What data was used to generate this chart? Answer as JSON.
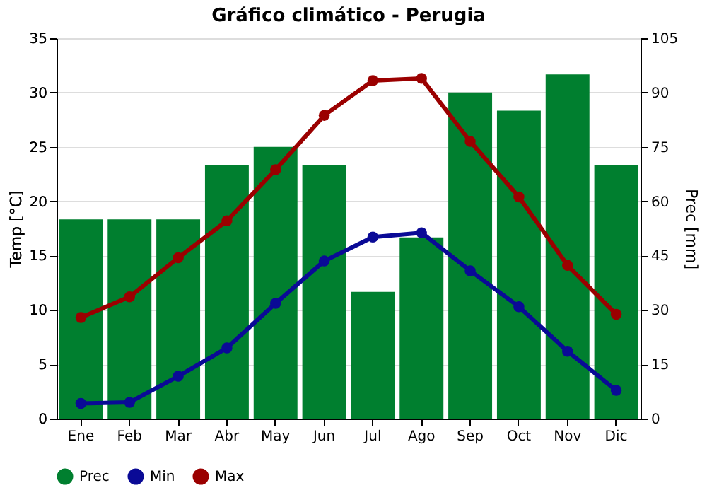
{
  "chart_data": {
    "type": "bar",
    "title": "Gráfico climático - Perugia",
    "categories": [
      "Ene",
      "Feb",
      "Mar",
      "Abr",
      "May",
      "Jun",
      "Jul",
      "Ago",
      "Sep",
      "Oct",
      "Nov",
      "Dic"
    ],
    "series": [
      {
        "name": "Prec",
        "axis": "y2",
        "color": "#007f2f",
        "values": [
          55,
          55,
          55,
          70,
          75,
          70,
          35,
          50,
          90,
          85,
          95,
          70
        ]
      },
      {
        "name": "Min",
        "type": "line",
        "color": "#0a0a96",
        "values": [
          1.4,
          1.5,
          3.9,
          6.5,
          10.6,
          14.5,
          16.7,
          17.1,
          13.6,
          10.3,
          6.2,
          2.6
        ]
      },
      {
        "name": "Max",
        "type": "line",
        "color": "#9b0000",
        "values": [
          9.3,
          11.2,
          14.8,
          18.2,
          22.9,
          27.9,
          31.1,
          31.3,
          25.5,
          20.4,
          14.1,
          9.6
        ]
      }
    ],
    "ylabel": "Temp [°C]",
    "y2label": "Prec [mm]",
    "ylim": [
      0,
      35
    ],
    "yticks": [
      0,
      5,
      10,
      15,
      20,
      25,
      30,
      35
    ],
    "y2lim": [
      0,
      105
    ],
    "y2ticks": [
      0,
      15,
      30,
      45,
      60,
      75,
      90,
      105
    ],
    "grid": "y",
    "legend": "bottom",
    "marker": "circle",
    "line_style": "solid"
  }
}
